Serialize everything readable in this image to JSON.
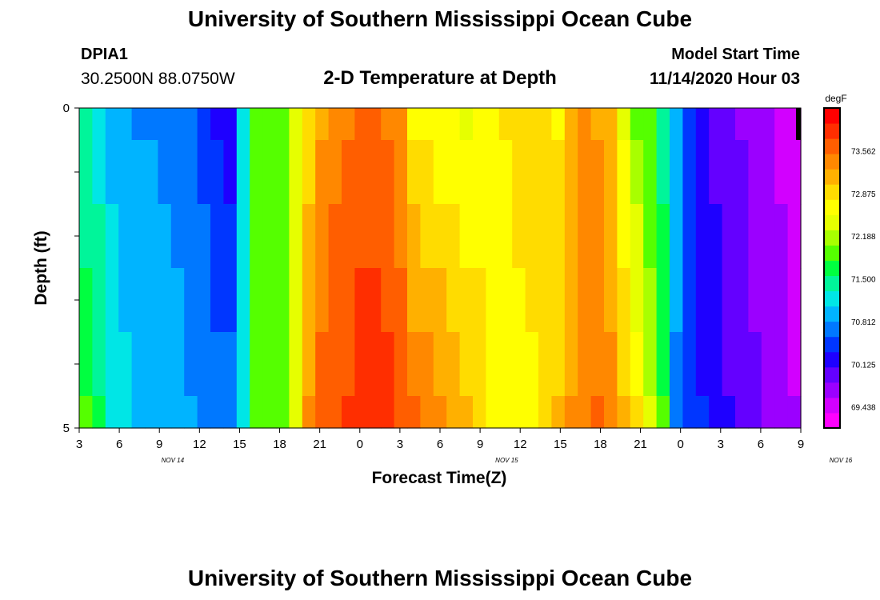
{
  "header": {
    "title": "University of Southern Mississippi Ocean Cube",
    "footer_title": "University of Southern Mississippi Ocean Cube",
    "station_id": "DPIA1",
    "station_coords": "30.2500N 88.0750W",
    "model_label": "Model Start Time",
    "model_time": "11/14/2020 Hour 03"
  },
  "chart_data": {
    "type": "heatmap",
    "title": "2-D Temperature at Depth",
    "xlabel": "Forecast Time(Z)",
    "ylabel": "Depth (ft)",
    "y_tick_labels": [
      "0",
      "5"
    ],
    "ylim": [
      0,
      5
    ],
    "x_tick_labels": [
      "3",
      "6",
      "9",
      "12",
      "15",
      "18",
      "21",
      "0",
      "3",
      "6",
      "9",
      "12",
      "15",
      "18",
      "21",
      "0",
      "3",
      "6",
      "9"
    ],
    "date_labels": [
      "NOV 14",
      "NOV 15",
      "NOV 16"
    ],
    "hours": [
      3,
      4,
      5,
      6,
      7,
      8,
      9,
      10,
      11,
      12,
      13,
      14,
      15,
      16,
      17,
      18,
      19,
      20,
      21,
      22,
      23,
      0,
      1,
      2,
      3,
      4,
      5,
      6,
      7,
      8,
      9,
      10,
      11,
      12,
      13,
      14,
      15,
      16,
      17,
      18,
      19,
      20,
      21,
      22,
      23,
      0,
      1,
      2,
      3,
      4,
      5,
      6,
      7,
      8,
      9
    ],
    "depth_layers": [
      0,
      1,
      2,
      3,
      4,
      5
    ],
    "surface_profile": [
      71.35,
      71.15,
      70.95,
      70.85,
      70.8,
      70.78,
      70.78,
      70.75,
      70.65,
      70.45,
      70.3,
      70.15,
      71.1,
      71.95,
      71.95,
      71.95,
      72.4,
      72.9,
      73.2,
      73.4,
      73.5,
      73.55,
      73.55,
      73.5,
      73.3,
      72.7,
      72.6,
      72.6,
      72.55,
      72.5,
      72.55,
      72.65,
      72.8,
      72.95,
      72.9,
      72.8,
      72.7,
      73.05,
      73.35,
      73.25,
      73.05,
      72.5,
      72.0,
      71.8,
      71.45,
      70.85,
      70.4,
      70.2,
      70.05,
      69.95,
      69.8,
      69.7,
      69.6,
      69.55,
      69.5
    ],
    "bottom_profile": [
      71.85,
      71.65,
      71.3,
      71.15,
      71.05,
      71.0,
      70.95,
      70.9,
      70.85,
      70.8,
      70.75,
      70.7,
      71.2,
      71.95,
      71.95,
      71.95,
      72.5,
      73.3,
      73.6,
      73.75,
      73.8,
      73.9,
      73.95,
      73.9,
      73.75,
      73.55,
      73.5,
      73.35,
      73.2,
      73.1,
      72.95,
      72.75,
      72.55,
      72.55,
      72.7,
      72.95,
      73.1,
      73.3,
      73.45,
      73.55,
      73.4,
      73.15,
      72.8,
      72.4,
      71.8,
      70.8,
      70.5,
      70.35,
      70.2,
      70.1,
      70.0,
      69.9,
      69.8,
      69.7,
      69.6
    ],
    "colorbar": {
      "units": "degF",
      "tick_labels": [
        "73.562",
        "72.875",
        "72.188",
        "71.500",
        "70.812",
        "70.125",
        "69.438"
      ],
      "min": 69.1,
      "max": 74.25,
      "colors": [
        "#ff00ff",
        "#d200ff",
        "#9b00ff",
        "#6400ff",
        "#1e00ff",
        "#0036ff",
        "#0078ff",
        "#00b4ff",
        "#00e6e6",
        "#00f59a",
        "#00ff40",
        "#55ff00",
        "#a8ff00",
        "#e6ff00",
        "#ffff00",
        "#ffdc00",
        "#ffb000",
        "#ff8800",
        "#ff5e00",
        "#ff2e00",
        "#ff0000"
      ]
    }
  }
}
